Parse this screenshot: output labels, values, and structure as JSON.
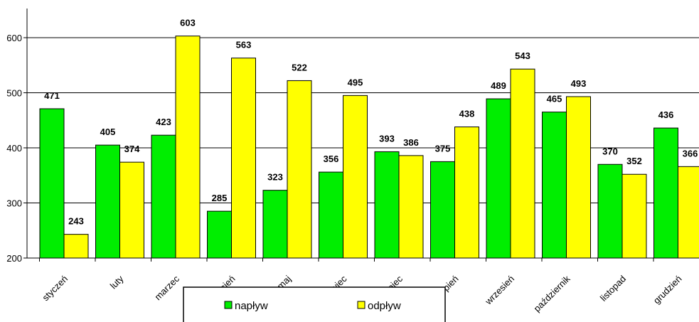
{
  "chart_data": {
    "type": "bar",
    "categories": [
      "styczeń",
      "luty",
      "marzec",
      "kwiecień",
      "maj",
      "czerwiec",
      "lipiec",
      "sierpień",
      "wrzesień",
      "październik",
      "listopad",
      "grudzień"
    ],
    "series": [
      {
        "name": "napływ",
        "color": "#00ee00",
        "values": [
          471,
          405,
          423,
          285,
          323,
          356,
          393,
          375,
          489,
          465,
          370,
          436
        ]
      },
      {
        "name": "odpływ",
        "color": "#ffff00",
        "values": [
          243,
          374,
          603,
          563,
          522,
          495,
          386,
          438,
          543,
          493,
          352,
          366
        ]
      }
    ],
    "yticks": [
      200,
      300,
      400,
      500,
      600
    ],
    "ylim": [
      200,
      640
    ],
    "grid": true,
    "legend": "bottom",
    "title": "",
    "xlabel": "",
    "ylabel": ""
  }
}
